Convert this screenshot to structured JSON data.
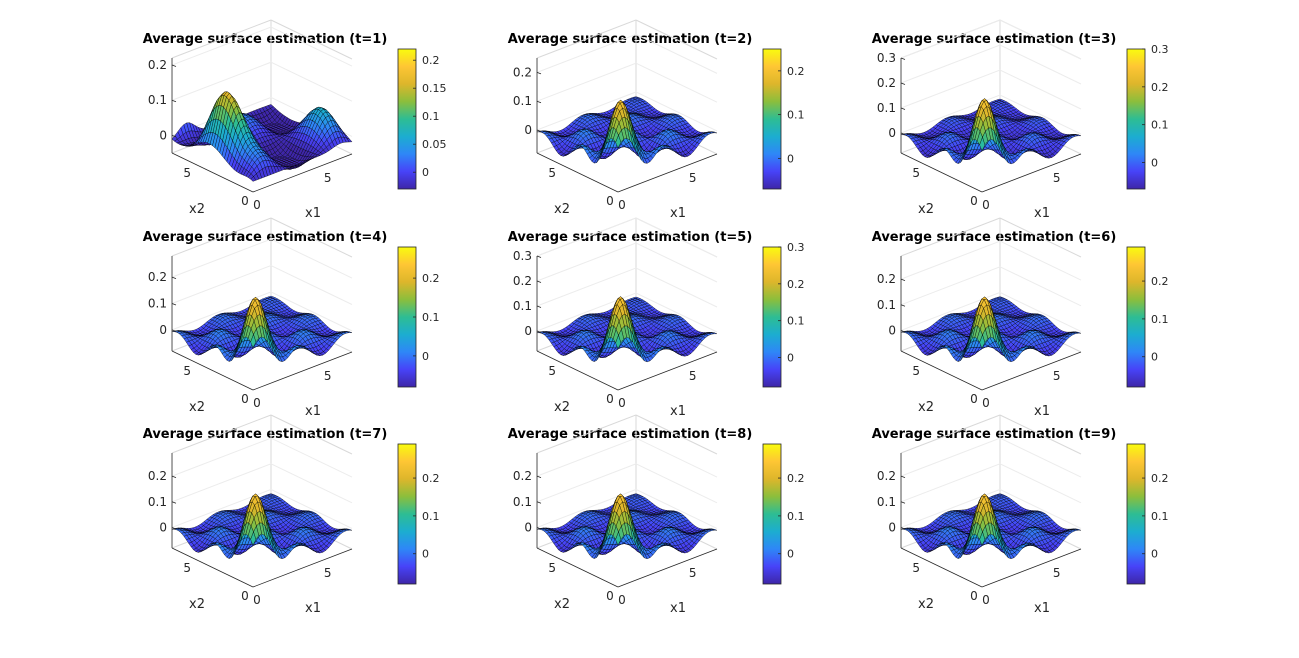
{
  "figure": {
    "colormap": [
      "#3e26a8",
      "#4743f8",
      "#2e87f7",
      "#1cadd0",
      "#2ebd93",
      "#8cbe3c",
      "#ddb62b",
      "#fec634",
      "#f9fb0e"
    ],
    "edge_color": "#000000"
  },
  "chart_data": [
    {
      "type": "surface",
      "title": "Average surface estimation (t=1)",
      "xlabel": "x1",
      "ylabel": "x2",
      "x_ticks": [
        "0",
        "5"
      ],
      "y_ticks": [
        "0",
        "5"
      ],
      "z_ticks": [
        "0",
        "0.1",
        "0.2"
      ],
      "zlim": [
        -0.05,
        0.22
      ],
      "colorbar": {
        "range": [
          -0.03,
          0.22
        ],
        "ticks": [
          "0",
          "0.05",
          "0.1",
          "0.15",
          "0.2"
        ]
      }
    },
    {
      "type": "surface",
      "title": "Average surface estimation (t=2)",
      "xlabel": "x1",
      "ylabel": "x2",
      "x_ticks": [
        "0",
        "5"
      ],
      "y_ticks": [
        "0",
        "5"
      ],
      "z_ticks": [
        "0",
        "0.1",
        "0.2"
      ],
      "zlim": [
        -0.08,
        0.25
      ],
      "colorbar": {
        "range": [
          -0.07,
          0.25
        ],
        "ticks": [
          "0",
          "0.1",
          "0.2"
        ]
      }
    },
    {
      "type": "surface",
      "title": "Average surface estimation (t=3)",
      "xlabel": "x1",
      "ylabel": "x2",
      "x_ticks": [
        "0",
        "5"
      ],
      "y_ticks": [
        "0",
        "5"
      ],
      "z_ticks": [
        "0",
        "0.1",
        "0.2",
        "0.3"
      ],
      "zlim": [
        -0.08,
        0.3
      ],
      "colorbar": {
        "range": [
          -0.07,
          0.3
        ],
        "ticks": [
          "0",
          "0.1",
          "0.2",
          "0.3"
        ]
      }
    },
    {
      "type": "surface",
      "title": "Average surface estimation (t=4)",
      "xlabel": "x1",
      "ylabel": "x2",
      "x_ticks": [
        "0",
        "5"
      ],
      "y_ticks": [
        "0",
        "5"
      ],
      "z_ticks": [
        "0",
        "0.1",
        "0.2"
      ],
      "zlim": [
        -0.08,
        0.28
      ],
      "colorbar": {
        "range": [
          -0.08,
          0.28
        ],
        "ticks": [
          "0",
          "0.1",
          "0.2"
        ]
      }
    },
    {
      "type": "surface",
      "title": "Average surface estimation (t=5)",
      "xlabel": "x1",
      "ylabel": "x2",
      "x_ticks": [
        "0",
        "5"
      ],
      "y_ticks": [
        "0",
        "5"
      ],
      "z_ticks": [
        "0",
        "0.1",
        "0.2",
        "0.3"
      ],
      "zlim": [
        -0.08,
        0.3
      ],
      "colorbar": {
        "range": [
          -0.08,
          0.3
        ],
        "ticks": [
          "0",
          "0.1",
          "0.2",
          "0.3"
        ]
      }
    },
    {
      "type": "surface",
      "title": "Average surface estimation (t=6)",
      "xlabel": "x1",
      "ylabel": "x2",
      "x_ticks": [
        "0",
        "5"
      ],
      "y_ticks": [
        "0",
        "5"
      ],
      "z_ticks": [
        "0",
        "0.1",
        "0.2"
      ],
      "zlim": [
        -0.08,
        0.29
      ],
      "colorbar": {
        "range": [
          -0.08,
          0.29
        ],
        "ticks": [
          "0",
          "0.1",
          "0.2"
        ]
      }
    },
    {
      "type": "surface",
      "title": "Average surface estimation (t=7)",
      "xlabel": "x1",
      "ylabel": "x2",
      "x_ticks": [
        "0",
        "5"
      ],
      "y_ticks": [
        "0",
        "5"
      ],
      "z_ticks": [
        "0",
        "0.1",
        "0.2"
      ],
      "zlim": [
        -0.08,
        0.29
      ],
      "colorbar": {
        "range": [
          -0.08,
          0.29
        ],
        "ticks": [
          "0",
          "0.1",
          "0.2"
        ]
      }
    },
    {
      "type": "surface",
      "title": "Average surface estimation (t=8)",
      "xlabel": "x1",
      "ylabel": "x2",
      "x_ticks": [
        "0",
        "5"
      ],
      "y_ticks": [
        "0",
        "5"
      ],
      "z_ticks": [
        "0",
        "0.1",
        "0.2"
      ],
      "zlim": [
        -0.08,
        0.29
      ],
      "colorbar": {
        "range": [
          -0.08,
          0.29
        ],
        "ticks": [
          "0",
          "0.1",
          "0.2"
        ]
      }
    },
    {
      "type": "surface",
      "title": "Average surface estimation (t=9)",
      "xlabel": "x1",
      "ylabel": "x2",
      "x_ticks": [
        "0",
        "5"
      ],
      "y_ticks": [
        "0",
        "5"
      ],
      "z_ticks": [
        "0",
        "0.1",
        "0.2"
      ],
      "zlim": [
        -0.08,
        0.29
      ],
      "colorbar": {
        "range": [
          -0.08,
          0.29
        ],
        "ticks": [
          "0",
          "0.1",
          "0.2"
        ]
      }
    }
  ]
}
